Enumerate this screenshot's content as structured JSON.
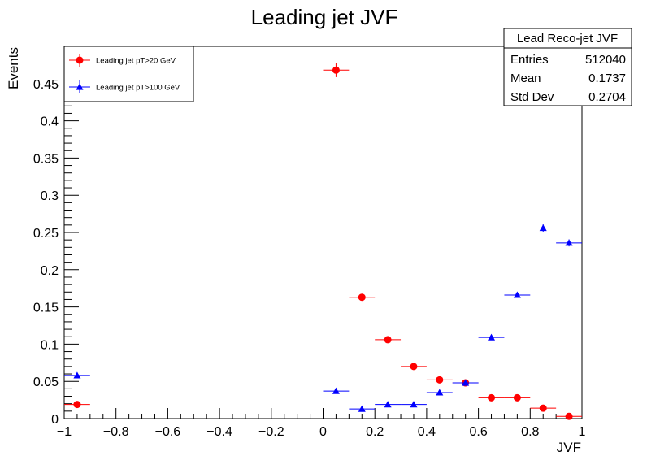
{
  "chart_data": {
    "type": "scatter",
    "title": "Leading jet JVF",
    "xlabel": "JVF",
    "ylabel": "Events",
    "xlim": [
      -1,
      1
    ],
    "ylim": [
      0,
      0.5
    ],
    "grid": false,
    "x_ticks": [
      "−1",
      "−0.8",
      "−0.6",
      "−0.4",
      "−0.2",
      "0",
      "0.2",
      "0.4",
      "0.6",
      "0.8",
      "1"
    ],
    "y_ticks": [
      "0",
      "0.05",
      "0.1",
      "0.15",
      "0.2",
      "0.25",
      "0.3",
      "0.35",
      "0.4",
      "0.45"
    ],
    "legend_position": "top-left",
    "series": [
      {
        "name": "Leading jet pT>20 GeV",
        "color": "#ff0000",
        "marker": "circle",
        "points": [
          {
            "x": -0.95,
            "y": 0.019
          },
          {
            "x": 0.05,
            "y": 0.468
          },
          {
            "x": 0.15,
            "y": 0.163
          },
          {
            "x": 0.25,
            "y": 0.106
          },
          {
            "x": 0.35,
            "y": 0.07
          },
          {
            "x": 0.45,
            "y": 0.052
          },
          {
            "x": 0.55,
            "y": 0.048
          },
          {
            "x": 0.65,
            "y": 0.028
          },
          {
            "x": 0.75,
            "y": 0.028
          },
          {
            "x": 0.85,
            "y": 0.014
          },
          {
            "x": 0.95,
            "y": 0.003
          }
        ]
      },
      {
        "name": "Leading jet pT>100 GeV",
        "color": "#0000ff",
        "marker": "triangle",
        "points": [
          {
            "x": -0.95,
            "y": 0.058
          },
          {
            "x": 0.05,
            "y": 0.037
          },
          {
            "x": 0.15,
            "y": 0.013
          },
          {
            "x": 0.25,
            "y": 0.019
          },
          {
            "x": 0.35,
            "y": 0.019
          },
          {
            "x": 0.45,
            "y": 0.035
          },
          {
            "x": 0.55,
            "y": 0.048
          },
          {
            "x": 0.65,
            "y": 0.109
          },
          {
            "x": 0.75,
            "y": 0.166
          },
          {
            "x": 0.85,
            "y": 0.256
          },
          {
            "x": 0.95,
            "y": 0.236
          }
        ]
      }
    ],
    "stats_box": {
      "title": "Lead Reco-jet JVF",
      "rows": [
        {
          "label": "Entries",
          "value": "512040"
        },
        {
          "label": "Mean",
          "value": "0.1737"
        },
        {
          "label": "Std Dev",
          "value": "0.2704"
        }
      ]
    }
  }
}
